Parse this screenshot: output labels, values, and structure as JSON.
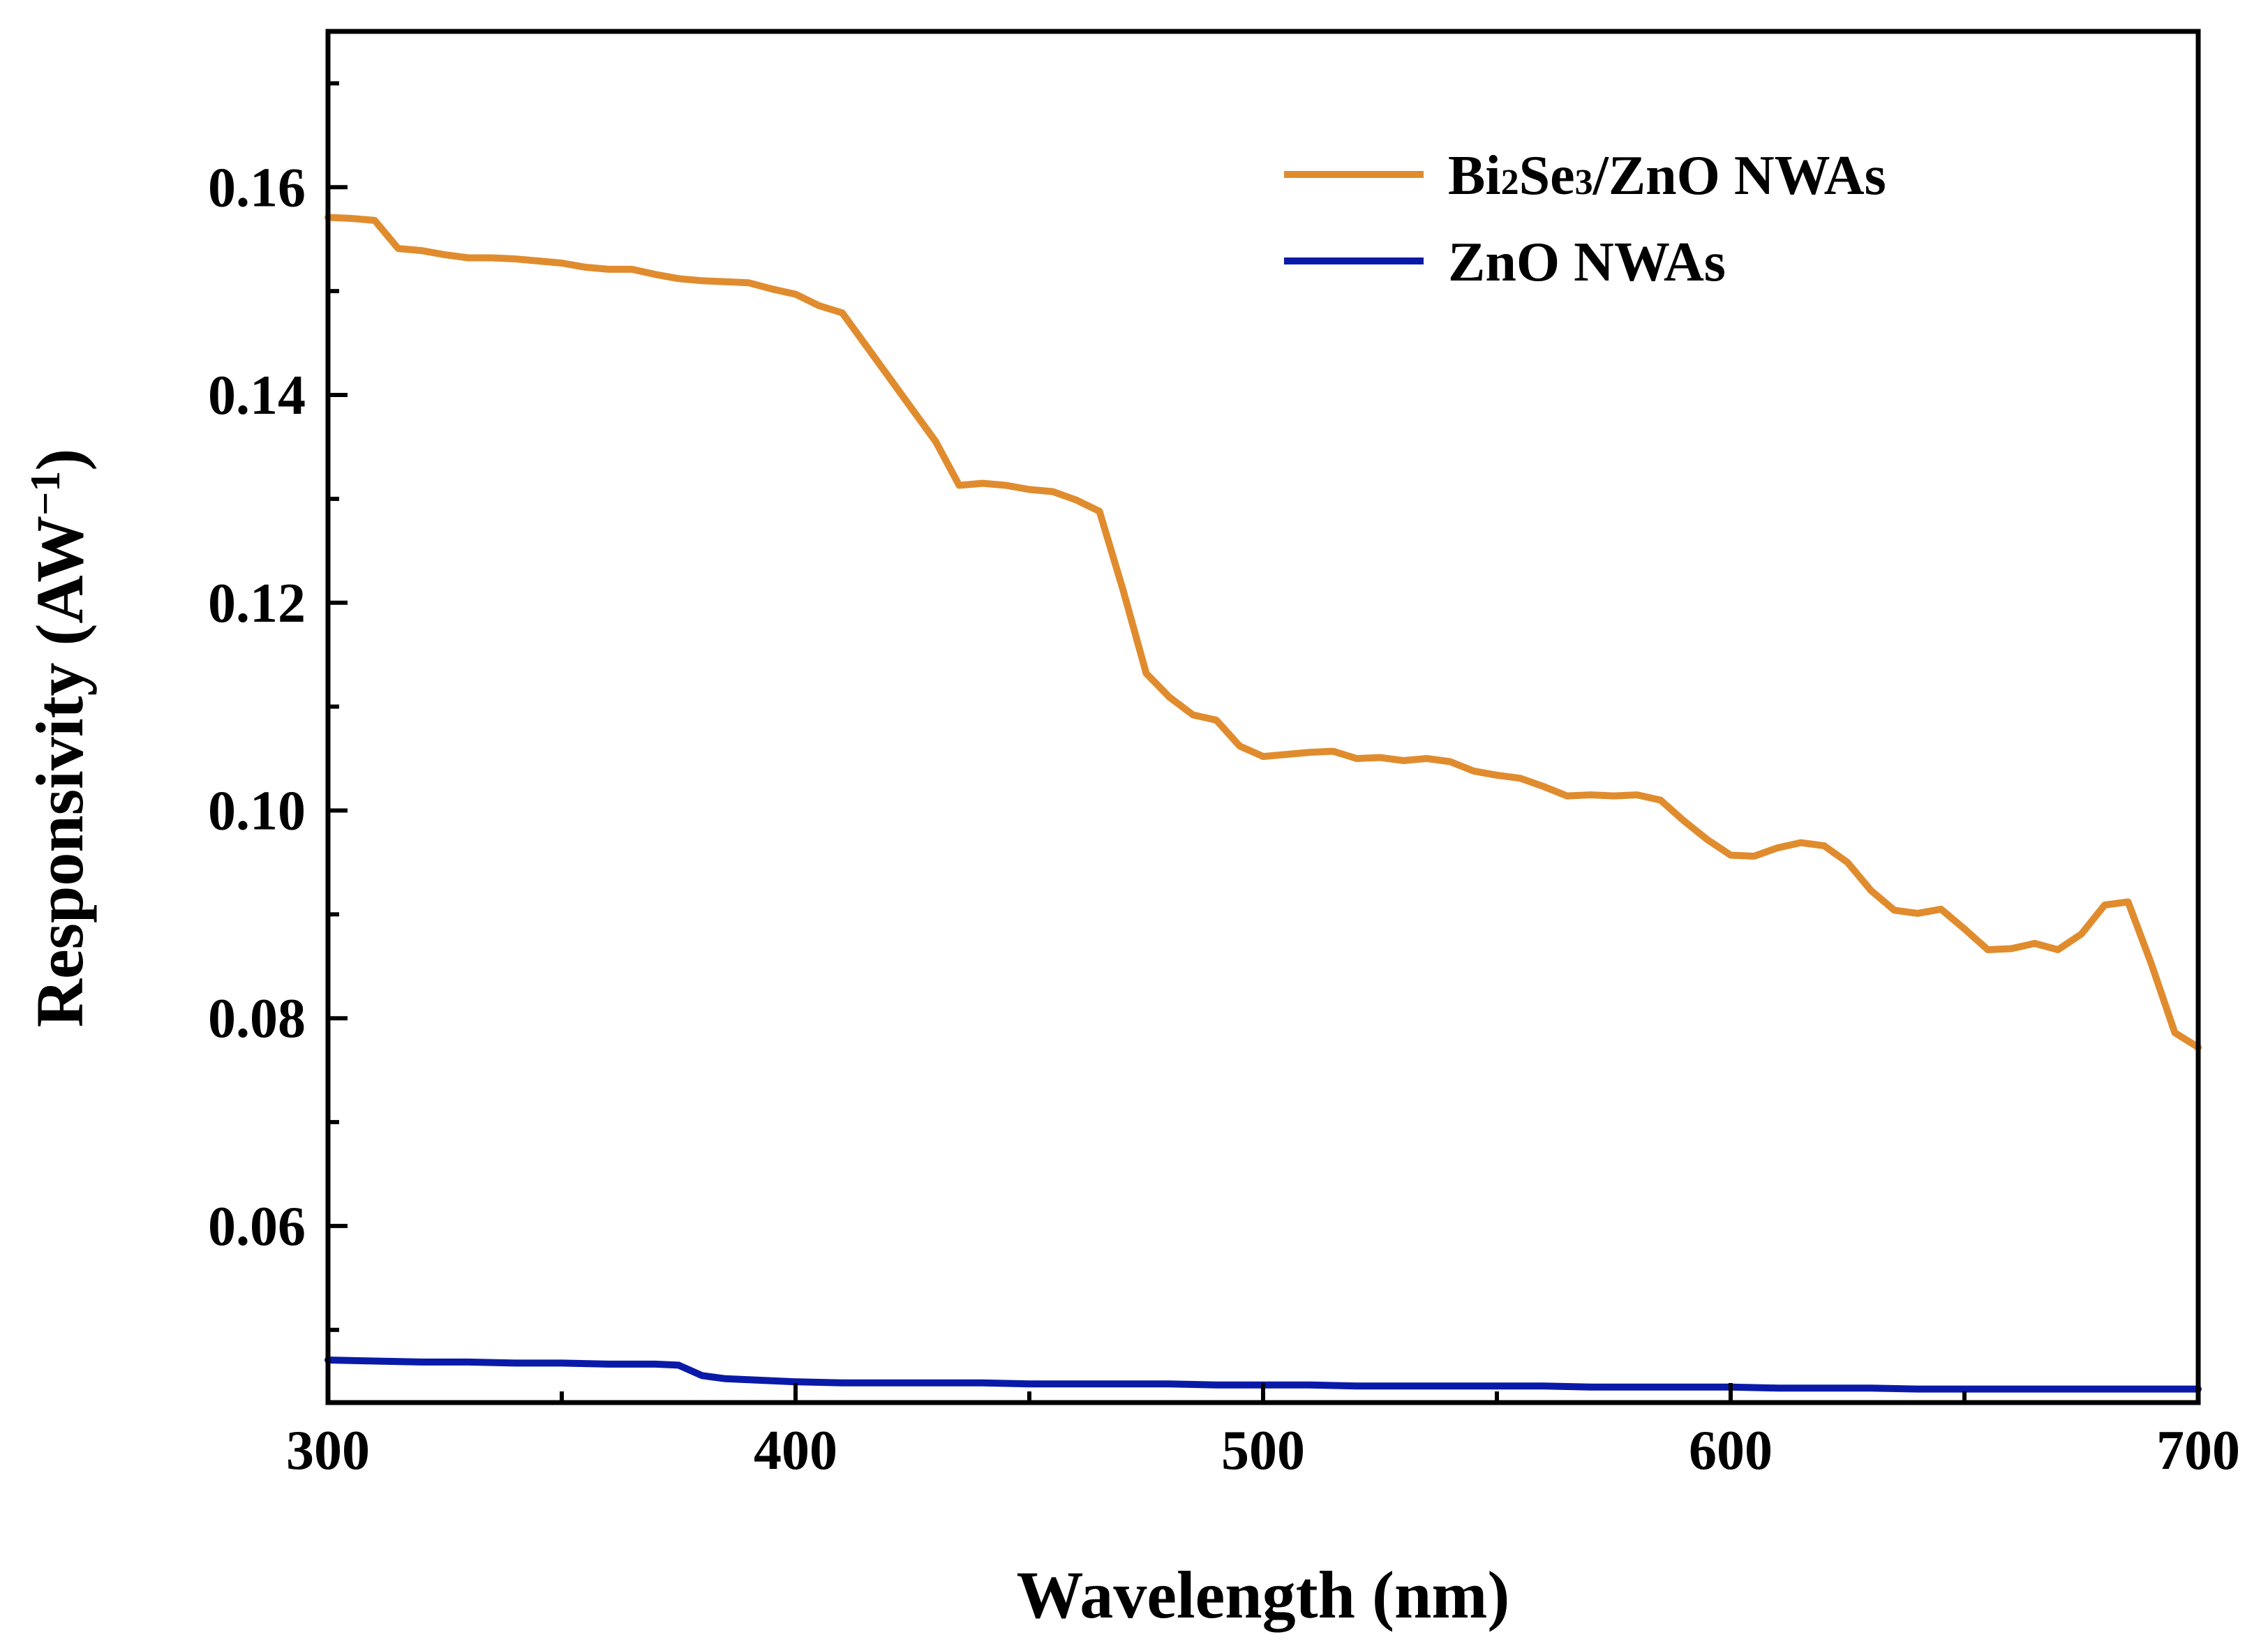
{
  "chart_data": {
    "type": "line",
    "title": "",
    "xlabel": "Wavelength (nm)",
    "ylabel": {
      "main": "Responsivity (AW",
      "sup": "−1",
      "close": ")"
    },
    "xlim": [
      300,
      700
    ],
    "ylim": [
      0.043,
      0.175
    ],
    "xticks": [
      300,
      400,
      500,
      600,
      700
    ],
    "xtick_labels": [
      "300",
      "400",
      "500",
      "600",
      "700"
    ],
    "yticks": [
      0.06,
      0.08,
      0.1,
      0.12,
      0.14,
      0.16
    ],
    "ytick_labels": [
      "0.06",
      "0.08",
      "0.10",
      "0.12",
      "0.14",
      "0.16"
    ],
    "grid": false,
    "legend_position": "top-right",
    "series": [
      {
        "name": "Bi2Se3/ZnO NWAs",
        "legend_parts": [
          {
            "text": "Bi",
            "sub": false
          },
          {
            "text": "2",
            "sub": true
          },
          {
            "text": "Se",
            "sub": false
          },
          {
            "text": "3",
            "sub": true
          },
          {
            "text": "/ZnO NWAs",
            "sub": false
          }
        ],
        "color": "#E08C2E",
        "x": [
          300,
          305,
          310,
          315,
          320,
          325,
          330,
          335,
          340,
          345,
          350,
          355,
          360,
          365,
          370,
          375,
          380,
          385,
          390,
          395,
          400,
          405,
          410,
          415,
          420,
          425,
          430,
          435,
          440,
          445,
          450,
          455,
          460,
          465,
          470,
          475,
          480,
          485,
          490,
          495,
          500,
          505,
          510,
          515,
          520,
          525,
          530,
          535,
          540,
          545,
          550,
          555,
          560,
          565,
          570,
          575,
          580,
          585,
          590,
          595,
          600,
          605,
          610,
          615,
          620,
          625,
          630,
          635,
          640,
          645,
          650,
          655,
          660,
          665,
          670,
          675,
          680,
          685,
          690,
          695,
          700
        ],
        "y": [
          0.1571,
          0.157,
          0.1568,
          0.1541,
          0.1539,
          0.1535,
          0.1532,
          0.1532,
          0.1531,
          0.1529,
          0.1527,
          0.1523,
          0.1521,
          0.1521,
          0.1516,
          0.1512,
          0.151,
          0.1509,
          0.1508,
          0.1502,
          0.1497,
          0.1486,
          0.1479,
          0.1448,
          0.1417,
          0.1386,
          0.1355,
          0.1313,
          0.1315,
          0.1313,
          0.1309,
          0.1307,
          0.1299,
          0.1288,
          0.1213,
          0.1132,
          0.1109,
          0.1092,
          0.1087,
          0.1062,
          0.1052,
          0.1054,
          0.1056,
          0.1057,
          0.105,
          0.1051,
          0.1048,
          0.105,
          0.1047,
          0.1038,
          0.1034,
          0.1031,
          0.1023,
          0.1014,
          0.1015,
          0.1014,
          0.1015,
          0.101,
          0.099,
          0.0972,
          0.0957,
          0.0956,
          0.0964,
          0.0969,
          0.0966,
          0.095,
          0.0923,
          0.0904,
          0.0901,
          0.0905,
          0.0886,
          0.0866,
          0.0867,
          0.0872,
          0.0866,
          0.0881,
          0.0909,
          0.0912,
          0.0852,
          0.0786,
          0.0772
        ]
      },
      {
        "name": "ZnO NWAs",
        "legend_parts": [
          {
            "text": "ZnO NWAs",
            "sub": false
          }
        ],
        "color": "#0A1AA8",
        "x": [
          300,
          310,
          320,
          330,
          340,
          350,
          360,
          370,
          375,
          380,
          385,
          390,
          400,
          410,
          420,
          430,
          440,
          450,
          460,
          470,
          480,
          490,
          500,
          510,
          520,
          530,
          540,
          550,
          560,
          570,
          580,
          590,
          600,
          610,
          620,
          630,
          640,
          650,
          660,
          670,
          680,
          690,
          700
        ],
        "y": [
          0.0471,
          0.047,
          0.0469,
          0.0469,
          0.0468,
          0.0468,
          0.0467,
          0.0467,
          0.0466,
          0.0456,
          0.0453,
          0.0452,
          0.045,
          0.0449,
          0.0449,
          0.0449,
          0.0449,
          0.0448,
          0.0448,
          0.0448,
          0.0448,
          0.0447,
          0.0447,
          0.0447,
          0.0446,
          0.0446,
          0.0446,
          0.0446,
          0.0446,
          0.0445,
          0.0445,
          0.0445,
          0.0445,
          0.0444,
          0.0444,
          0.0444,
          0.0443,
          0.0443,
          0.0443,
          0.0443,
          0.0443,
          0.0443,
          0.0443
        ]
      }
    ]
  }
}
